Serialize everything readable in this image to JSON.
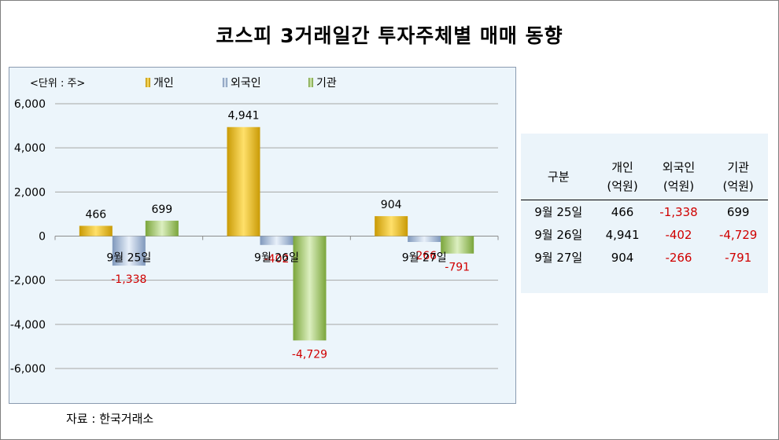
{
  "title": "코스피 3거래일간 투자주체별 매매 동향",
  "unit_label": "<단위 : 주>",
  "source": "자료 : 한국거래소",
  "colors": {
    "individual": "#f2c01a",
    "foreign": "#9db6d6",
    "institution": "#97bf5a",
    "negative_text": "#d00000",
    "grid": "#a6a6a6"
  },
  "chart_data": {
    "type": "bar",
    "categories": [
      "9월 25일",
      "9월 26일",
      "9월 27일"
    ],
    "series": [
      {
        "name": "개인",
        "values": [
          466,
          4941,
          904
        ]
      },
      {
        "name": "외국인",
        "values": [
          -1338,
          -402,
          -266
        ]
      },
      {
        "name": "기관",
        "values": [
          699,
          -4729,
          -791
        ]
      }
    ],
    "data_labels": [
      [
        "466",
        "4,941",
        "904"
      ],
      [
        "-1,338",
        "-402",
        "-266"
      ],
      [
        "699",
        "-4,729",
        "-791"
      ]
    ],
    "y_ticks": [
      "6,000",
      "4,000",
      "2,000",
      "0",
      "-2,000",
      "-4,000",
      "-6,000"
    ],
    "ylim": [
      -6000,
      6000
    ],
    "grid": true,
    "legend_position": "top"
  },
  "table": {
    "header": [
      [
        "구분"
      ],
      [
        "개인",
        "(억원)"
      ],
      [
        "외국인",
        "(억원)"
      ],
      [
        "기관",
        "(억원)"
      ]
    ],
    "rows": [
      [
        "9월 25일",
        "466",
        "-1,338",
        "699"
      ],
      [
        "9월 26일",
        "4,941",
        "-402",
        "-4,729"
      ],
      [
        "9월 27일",
        "904",
        "-266",
        "-791"
      ]
    ]
  }
}
